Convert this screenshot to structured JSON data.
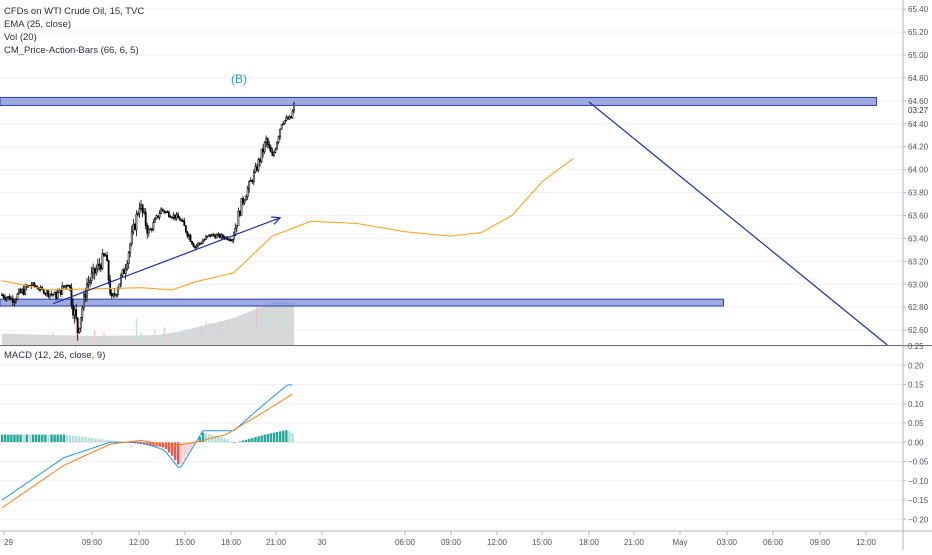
{
  "legend": {
    "title": "CFDs on WTI Crude Oil, 15, TVC",
    "ema": "EMA (25, close)",
    "vol": "Vol (20)",
    "cm": "CM_Price-Action-Bars (66, 6, 5)"
  },
  "macd_legend": "MACD (12, 26, close, 9)",
  "wave_label": "(B)",
  "colors": {
    "up": "#26a69a",
    "down": "#ef5350",
    "candle": "#000000",
    "ema": "#f5a623",
    "macd_line": "#2196f3",
    "signal_line": "#ff7f0e",
    "zone_fill": "#7e8fd6",
    "zone_stroke": "#2c3fa8",
    "arrow": "#1e2fa8",
    "volume": "#c7c9cc"
  },
  "chart_data": [
    {
      "type": "candlestick",
      "title": "CFDs on WTI Crude Oil, 15, TVC",
      "ylim": [
        62.47,
        65.48
      ],
      "y_ticks": [
        "65.40",
        "65.20",
        "65.00",
        "64.80",
        "64.60",
        "64.40",
        "64.20",
        "64.00",
        "63.80",
        "63.60",
        "63.40",
        "63.20",
        "63.00",
        "62.80",
        "62.60"
      ],
      "last_price_label": "03:27",
      "x_ticks": [
        "29",
        "09:00",
        "12:00",
        "15:00",
        "18:00",
        "21:00",
        "30",
        "06:00",
        "09:00",
        "12:00",
        "15:00",
        "18:00",
        "21:00",
        "May",
        "03:00",
        "06:00",
        "09:00",
        "12:00"
      ],
      "ohlc_segments": [
        {
          "bars": 8,
          "start": 62.91,
          "end": 62.87,
          "amp": 0.06
        },
        {
          "bars": 12,
          "start": 62.87,
          "end": 63.0,
          "amp": 0.08
        },
        {
          "bars": 8,
          "start": 63.0,
          "end": 62.94,
          "amp": 0.04
        },
        {
          "bars": 8,
          "start": 62.94,
          "end": 62.9,
          "amp": 0.06
        },
        {
          "bars": 8,
          "start": 62.9,
          "end": 63.02,
          "amp": 0.08
        },
        {
          "bars": 6,
          "start": 63.02,
          "end": 62.6,
          "amp": 0.16
        },
        {
          "bars": 6,
          "start": 62.6,
          "end": 63.0,
          "amp": 0.12
        },
        {
          "bars": 12,
          "start": 63.0,
          "end": 63.25,
          "amp": 0.12
        },
        {
          "bars": 4,
          "start": 63.25,
          "end": 62.85,
          "amp": 0.12
        },
        {
          "bars": 8,
          "start": 62.85,
          "end": 63.12,
          "amp": 0.1
        },
        {
          "bars": 10,
          "start": 63.12,
          "end": 63.7,
          "amp": 0.12
        },
        {
          "bars": 6,
          "start": 63.7,
          "end": 63.45,
          "amp": 0.12
        },
        {
          "bars": 8,
          "start": 63.45,
          "end": 63.65,
          "amp": 0.06
        },
        {
          "bars": 12,
          "start": 63.65,
          "end": 63.57,
          "amp": 0.05
        },
        {
          "bars": 10,
          "start": 63.57,
          "end": 63.33,
          "amp": 0.07
        },
        {
          "bars": 10,
          "start": 63.33,
          "end": 63.43,
          "amp": 0.05
        },
        {
          "bars": 14,
          "start": 63.43,
          "end": 63.4,
          "amp": 0.04
        },
        {
          "bars": 6,
          "start": 63.4,
          "end": 63.7,
          "amp": 0.1
        },
        {
          "bars": 10,
          "start": 63.7,
          "end": 64.02,
          "amp": 0.08
        },
        {
          "bars": 6,
          "start": 64.02,
          "end": 64.25,
          "amp": 0.1
        },
        {
          "bars": 4,
          "start": 64.25,
          "end": 64.1,
          "amp": 0.08
        },
        {
          "bars": 6,
          "start": 64.1,
          "end": 64.42,
          "amp": 0.08
        },
        {
          "bars": 6,
          "start": 64.42,
          "end": 64.45,
          "amp": 0.05
        },
        {
          "bars": 2,
          "start": 64.45,
          "end": 64.56,
          "amp": 0.05
        }
      ],
      "ema": [
        [
          0,
          63.03
        ],
        [
          30,
          62.95
        ],
        [
          60,
          62.96
        ],
        [
          90,
          62.97
        ],
        [
          110,
          62.95
        ],
        [
          125,
          63.02
        ],
        [
          150,
          63.1
        ],
        [
          175,
          63.42
        ],
        [
          200,
          63.55
        ],
        [
          230,
          63.53
        ],
        [
          260,
          63.46
        ],
        [
          290,
          63.42
        ],
        [
          310,
          63.45
        ],
        [
          330,
          63.6
        ],
        [
          350,
          63.9
        ],
        [
          370,
          64.1
        ]
      ],
      "zones": [
        {
          "from_bar": 0,
          "to_bar": 566,
          "low": 64.56,
          "high": 64.63
        },
        {
          "from_bar": 0,
          "to_bar": 467,
          "low": 62.81,
          "high": 62.87
        }
      ],
      "arrows": [
        {
          "from": [
            33,
            62.83
          ],
          "to": [
            180,
            63.58
          ]
        },
        {
          "from": [
            380,
            64.59
          ],
          "to": [
            573,
            62.47
          ]
        }
      ],
      "volume": [
        [
          0,
          0.25
        ],
        [
          60,
          0.2
        ],
        [
          100,
          0.22
        ],
        [
          115,
          0.3
        ],
        [
          150,
          0.6
        ],
        [
          175,
          0.95
        ],
        [
          205,
          0.95
        ],
        [
          225,
          0.6
        ],
        [
          245,
          0.25
        ],
        [
          275,
          0.15
        ],
        [
          305,
          0.12
        ],
        [
          325,
          0.2
        ],
        [
          350,
          0.35
        ],
        [
          370,
          0.4
        ]
      ]
    },
    {
      "type": "bar",
      "title": "MACD (12, 26, close, 9)",
      "ylim": [
        -0.22,
        0.25
      ],
      "y_ticks": [
        "0.25",
        "0.20",
        "0.15",
        "0.10",
        "0.05",
        "0.00",
        "−0.05",
        "−0.10",
        "−0.15",
        "−0.20"
      ],
      "macd": [
        [
          0,
          -0.15
        ],
        [
          40,
          -0.04
        ],
        [
          70,
          0.0
        ],
        [
          90,
          0.0
        ],
        [
          105,
          -0.02
        ],
        [
          115,
          -0.07
        ],
        [
          130,
          0.03
        ],
        [
          150,
          0.03
        ],
        [
          170,
          0.1
        ],
        [
          185,
          0.15
        ],
        [
          205,
          0.14
        ],
        [
          225,
          0.08
        ],
        [
          255,
          0.02
        ],
        [
          275,
          -0.01
        ],
        [
          295,
          0.0
        ],
        [
          315,
          0.0
        ],
        [
          330,
          0.05
        ],
        [
          350,
          0.15
        ],
        [
          370,
          0.23
        ]
      ],
      "signal": [
        [
          0,
          -0.17
        ],
        [
          40,
          -0.06
        ],
        [
          70,
          -0.005
        ],
        [
          90,
          0.005
        ],
        [
          110,
          -0.01
        ],
        [
          125,
          0.0
        ],
        [
          145,
          0.02
        ],
        [
          170,
          0.08
        ],
        [
          190,
          0.13
        ],
        [
          210,
          0.13
        ],
        [
          240,
          0.07
        ],
        [
          265,
          0.02
        ],
        [
          290,
          0.0
        ],
        [
          315,
          -0.01
        ],
        [
          335,
          0.03
        ],
        [
          355,
          0.12
        ],
        [
          370,
          0.21
        ]
      ]
    }
  ]
}
